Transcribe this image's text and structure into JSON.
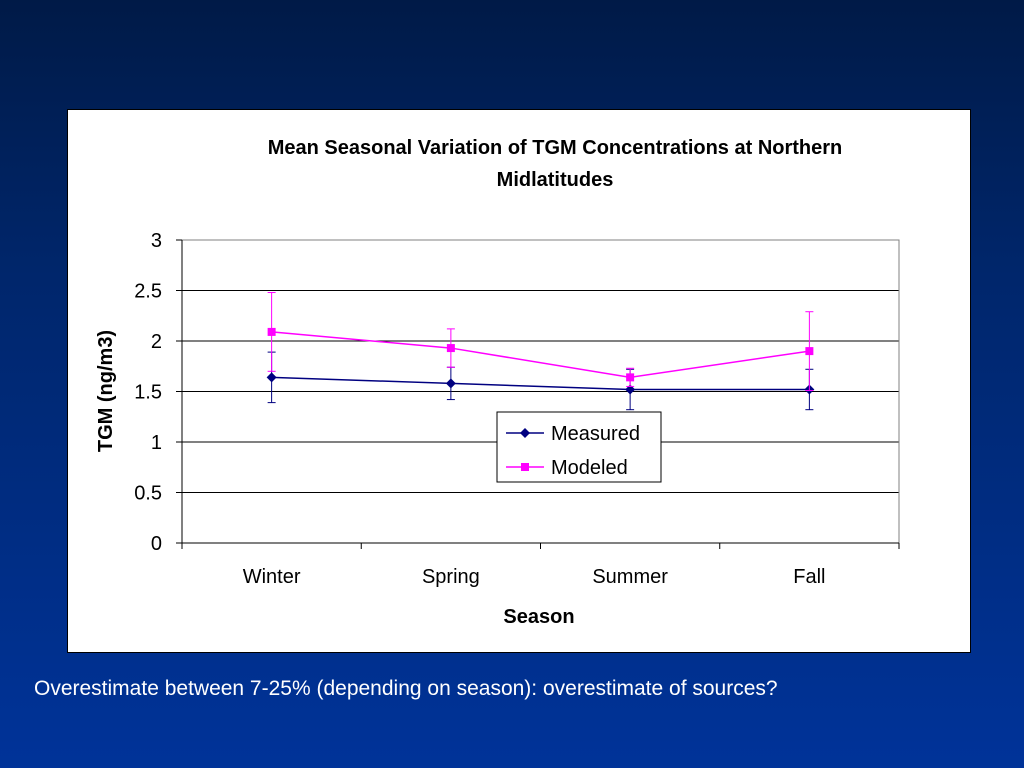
{
  "slide": {
    "caption": "Overestimate between 7-25% (depending on season): overestimate of sources?",
    "background_color": "#003399"
  },
  "chart_data": {
    "type": "line",
    "title_lines": [
      "Mean Seasonal Variation of TGM Concentrations at Northern",
      "Midlatitudes"
    ],
    "xlabel": "Season",
    "ylabel": "TGM (ng/m3)",
    "categories": [
      "Winter",
      "Spring",
      "Summer",
      "Fall"
    ],
    "ylim": [
      0,
      3
    ],
    "yticks": [
      "0",
      "0.5",
      "1",
      "1.5",
      "2",
      "2.5",
      "3"
    ],
    "grid": true,
    "legend_position": "center",
    "series": [
      {
        "name": "Measured",
        "color": "#000080",
        "marker": "diamond",
        "values": [
          1.64,
          1.58,
          1.52,
          1.52
        ],
        "error_low": [
          1.39,
          1.42,
          1.32,
          1.32
        ],
        "error_high": [
          1.89,
          1.74,
          1.72,
          1.72
        ]
      },
      {
        "name": "Modeled",
        "color": "#ff00ff",
        "marker": "square",
        "values": [
          2.09,
          1.93,
          1.64,
          1.9
        ],
        "error_low": [
          1.7,
          1.74,
          1.55,
          1.51
        ],
        "error_high": [
          2.48,
          2.12,
          1.73,
          2.29
        ]
      }
    ]
  }
}
